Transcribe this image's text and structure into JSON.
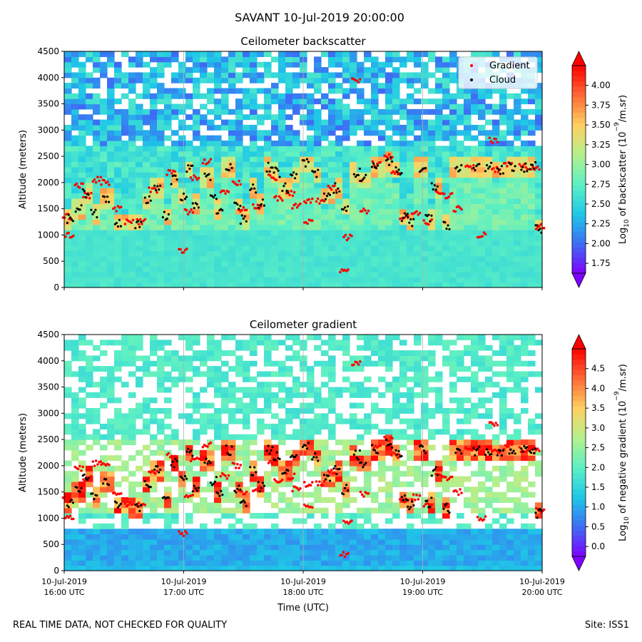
{
  "suptitle": "SAVANT 10-Jul-2019 20:00:00",
  "footer": {
    "left": "REAL TIME DATA, NOT CHECKED FOR QUALITY",
    "right": "Site: ISS1"
  },
  "colors": {
    "gradient_marker": "#ff0000",
    "cloud_marker": "#000000",
    "colormap": [
      "#7f00ff",
      "#3d6df5",
      "#1ec8e6",
      "#5cf0c4",
      "#b4f08c",
      "#ffd060",
      "#ff6a36",
      "#ff0000"
    ]
  },
  "chart_data": [
    {
      "type": "heatmap",
      "title": "Ceilometer backscatter",
      "xlabel": "",
      "ylabel": "Altitude (meters)",
      "ylim": [
        0,
        4500
      ],
      "yticks": [
        0,
        500,
        1000,
        1500,
        2000,
        2500,
        3000,
        3500,
        4000,
        4500
      ],
      "xlim": [
        0,
        4
      ],
      "colorbar": {
        "label_prefix": "Log",
        "label_sub": "10",
        "label_mid": " of backscatter (10",
        "label_sup": "−9",
        "label_suffix": "/m.sr)",
        "range": [
          1.625,
          4.25
        ],
        "ticks": [
          "1.75",
          "2.00",
          "2.25",
          "2.50",
          "2.75",
          "3.00",
          "3.25",
          "3.50",
          "3.75",
          "4.00"
        ]
      },
      "legend": {
        "position": "top-right",
        "entries": [
          {
            "label": "Gradient",
            "color": "#ff0000"
          },
          {
            "label": "Cloud",
            "color": "#000000"
          }
        ]
      }
    },
    {
      "type": "heatmap",
      "title": "Ceilometer gradient",
      "xlabel": "Time (UTC)",
      "ylabel": "Altitude (meters)",
      "ylim": [
        0,
        4500
      ],
      "yticks": [
        0,
        500,
        1000,
        1500,
        2000,
        2500,
        3000,
        3500,
        4000,
        4500
      ],
      "xlim": [
        0,
        4
      ],
      "xticks": [
        {
          "x": 0,
          "line1": "10-Jul-2019",
          "line2": "16:00 UTC"
        },
        {
          "x": 1,
          "line1": "10-Jul-2019",
          "line2": "17:00 UTC"
        },
        {
          "x": 2,
          "line1": "10-Jul-2019",
          "line2": "18:00 UTC"
        },
        {
          "x": 3,
          "line1": "10-Jul-2019",
          "line2": "19:00 UTC"
        },
        {
          "x": 4,
          "line1": "10-Jul-2019",
          "line2": "20:00 UTC"
        }
      ],
      "colorbar": {
        "label_prefix": "Log",
        "label_sub": "10",
        "label_mid": " of negative gradient (10",
        "label_sup": "−9",
        "label_suffix": "/m.sr)",
        "range": [
          -0.25,
          5.0
        ],
        "ticks": [
          "0.0",
          "0.5",
          "1.0",
          "1.5",
          "2.0",
          "2.5",
          "3.0",
          "3.5",
          "4.0",
          "4.5"
        ]
      }
    }
  ],
  "cloud_track": [
    [
      0.05,
      1300
    ],
    [
      0.12,
      1500
    ],
    [
      0.18,
      1800
    ],
    [
      0.25,
      1400
    ],
    [
      0.35,
      1700
    ],
    [
      0.45,
      1250
    ],
    [
      0.62,
      1200
    ],
    [
      0.7,
      1650
    ],
    [
      0.78,
      1900
    ],
    [
      0.85,
      1350
    ],
    [
      0.92,
      2050
    ],
    [
      1.0,
      1750
    ],
    [
      1.05,
      2250
    ],
    [
      1.1,
      1600
    ],
    [
      1.2,
      2100
    ],
    [
      1.25,
      1700
    ],
    [
      1.3,
      1500
    ],
    [
      1.38,
      2300
    ],
    [
      1.45,
      1550
    ],
    [
      1.5,
      1300
    ],
    [
      1.58,
      1900
    ],
    [
      1.65,
      1600
    ],
    [
      1.72,
      2300
    ],
    [
      1.78,
      2200
    ],
    [
      1.85,
      1900
    ],
    [
      1.92,
      2150
    ],
    [
      2.02,
      2350
    ],
    [
      2.1,
      2150
    ],
    [
      2.2,
      1750
    ],
    [
      2.28,
      1900
    ],
    [
      2.35,
      1550
    ],
    [
      2.45,
      2200
    ],
    [
      2.5,
      2050
    ],
    [
      2.6,
      2300
    ],
    [
      2.72,
      2400
    ],
    [
      2.8,
      2250
    ],
    [
      2.85,
      1350
    ],
    [
      2.9,
      1250
    ],
    [
      3.0,
      2300
    ],
    [
      3.05,
      1300
    ],
    [
      3.1,
      1900
    ],
    [
      3.2,
      1200
    ],
    [
      3.3,
      2300
    ],
    [
      3.45,
      2280
    ],
    [
      3.55,
      2300
    ],
    [
      3.65,
      2250
    ],
    [
      3.75,
      2300
    ],
    [
      3.85,
      2280
    ],
    [
      3.92,
      2300
    ],
    [
      3.97,
      1100
    ]
  ],
  "gradient_track": [
    [
      0.03,
      1350
    ],
    [
      0.05,
      1000
    ],
    [
      0.13,
      1950
    ],
    [
      0.2,
      1750
    ],
    [
      0.28,
      2050
    ],
    [
      0.35,
      2000
    ],
    [
      0.45,
      1500
    ],
    [
      0.55,
      1250
    ],
    [
      0.65,
      1250
    ],
    [
      0.75,
      1850
    ],
    [
      0.9,
      2200
    ],
    [
      1.0,
      700
    ],
    [
      1.05,
      1450
    ],
    [
      1.1,
      2100
    ],
    [
      1.2,
      2400
    ],
    [
      1.35,
      1800
    ],
    [
      1.45,
      2000
    ],
    [
      1.5,
      1500
    ],
    [
      1.62,
      1550
    ],
    [
      1.75,
      2100
    ],
    [
      1.8,
      1700
    ],
    [
      1.9,
      1800
    ],
    [
      1.95,
      1550
    ],
    [
      2.05,
      1250
    ],
    [
      2.05,
      1650
    ],
    [
      2.15,
      1650
    ],
    [
      2.25,
      1900
    ],
    [
      2.35,
      300
    ],
    [
      2.38,
      950
    ],
    [
      2.45,
      3950
    ],
    [
      2.52,
      1450
    ],
    [
      2.62,
      2350
    ],
    [
      2.72,
      2500
    ],
    [
      2.78,
      2200
    ],
    [
      2.85,
      1350
    ],
    [
      2.95,
      1400
    ],
    [
      3.05,
      1250
    ],
    [
      3.15,
      1800
    ],
    [
      3.22,
      1750
    ],
    [
      3.3,
      1500
    ],
    [
      3.4,
      2300
    ],
    [
      3.5,
      1000
    ],
    [
      3.6,
      2800
    ],
    [
      3.62,
      2250
    ],
    [
      3.72,
      2350
    ],
    [
      3.85,
      2300
    ],
    [
      3.95,
      2300
    ],
    [
      3.99,
      1150
    ]
  ]
}
